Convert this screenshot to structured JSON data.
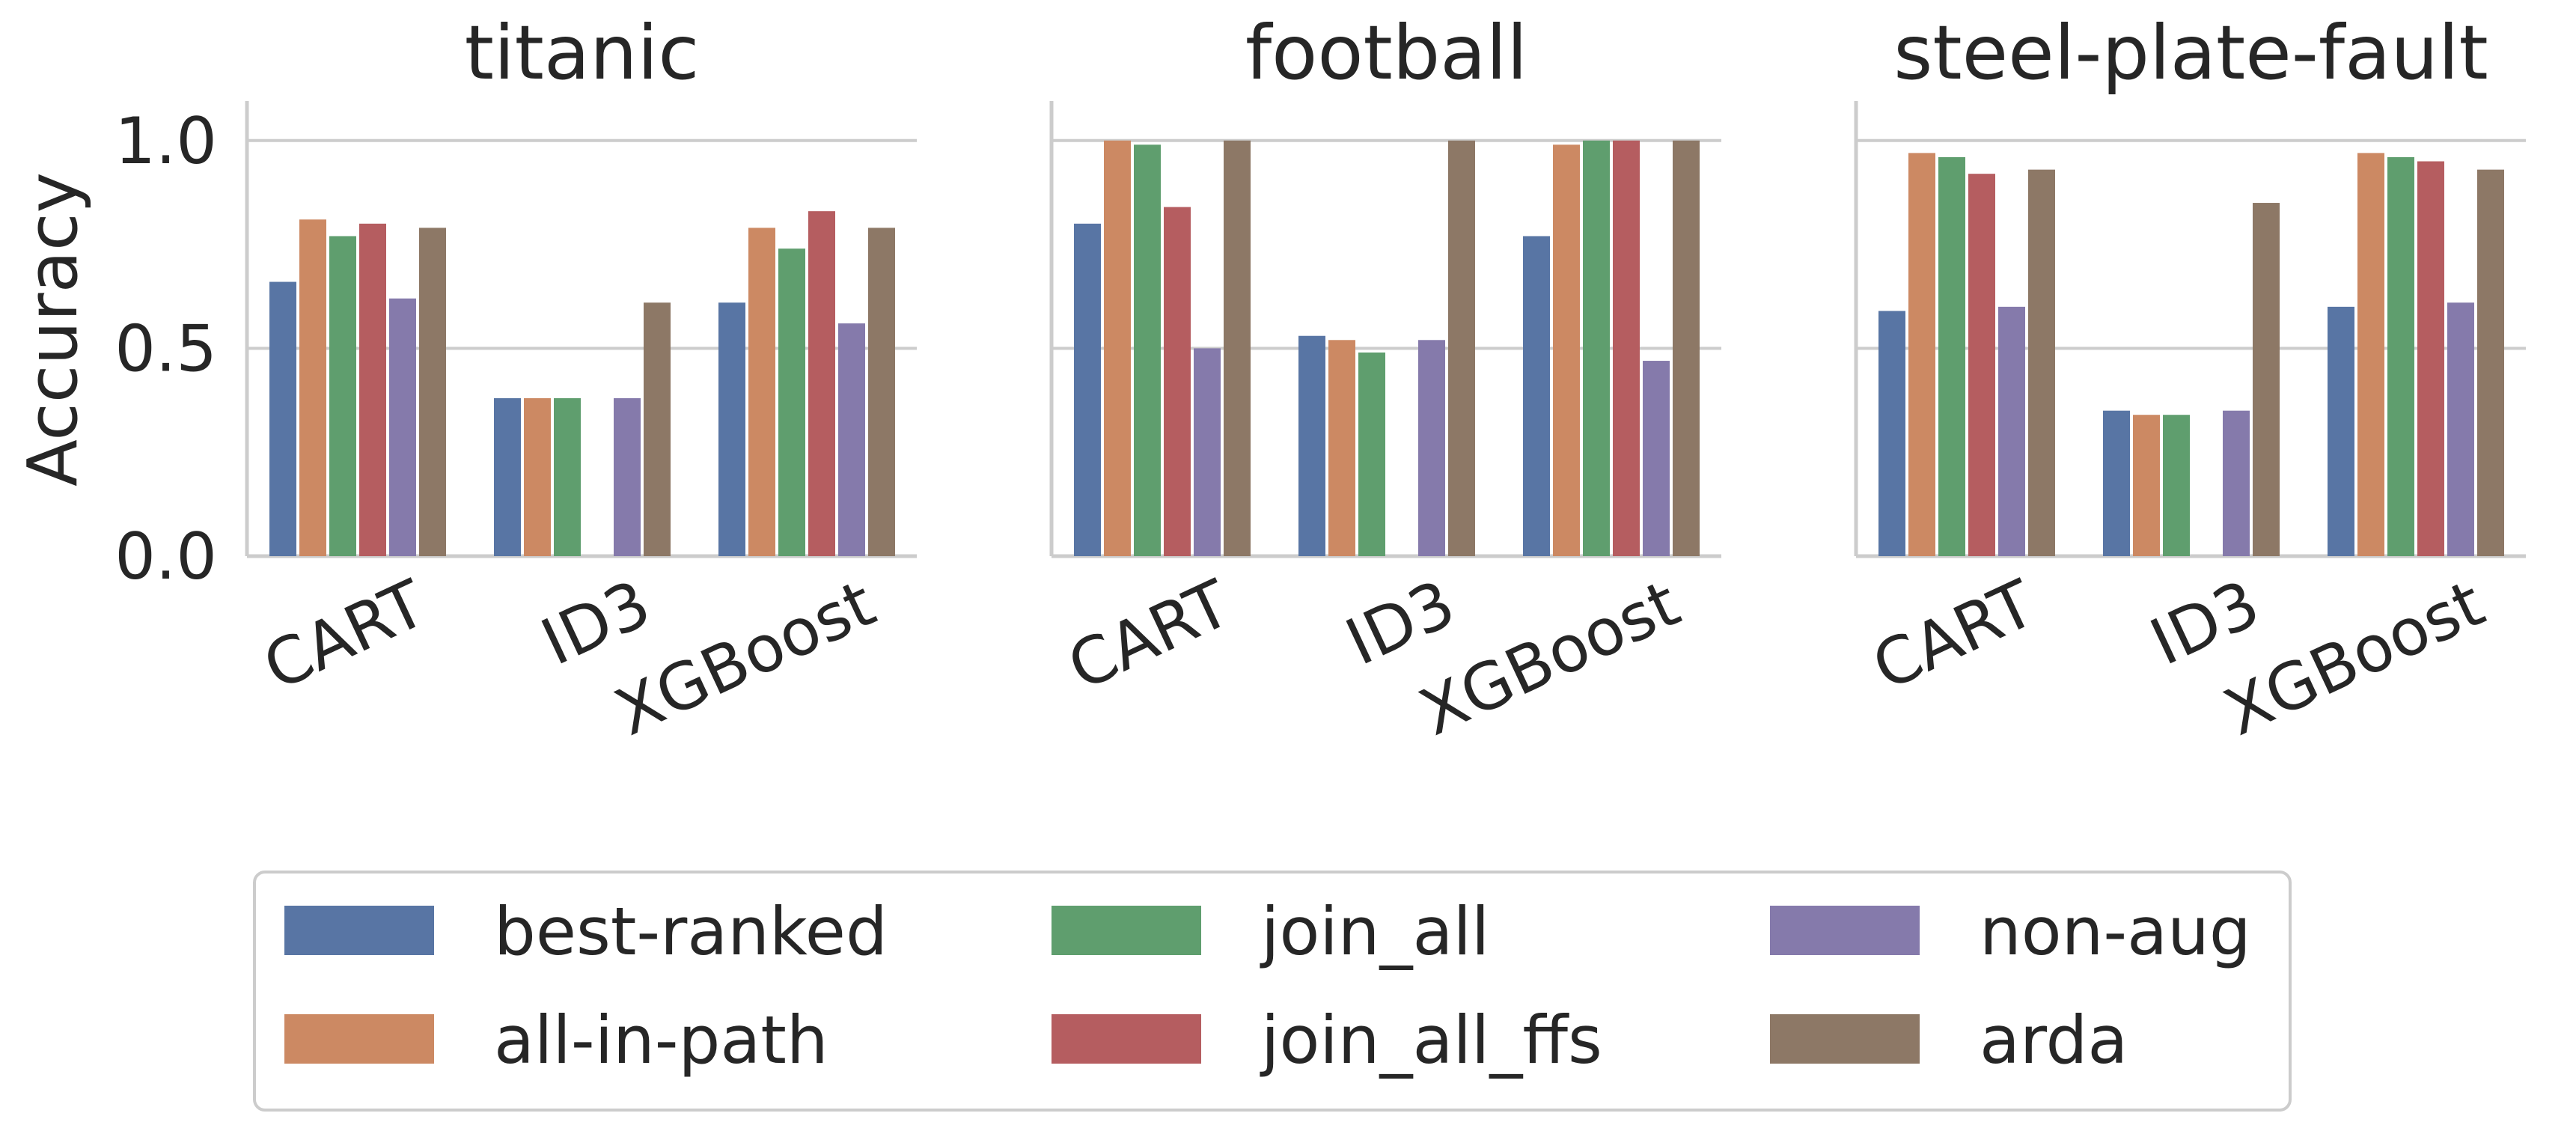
{
  "chart_data": {
    "type": "bar",
    "ylabel": "Accuracy",
    "ylim": [
      0,
      1.05
    ],
    "yticks": [
      "0.0",
      "0.5",
      "1.0"
    ],
    "grid": "horizontal",
    "legend": {
      "placement": "bottom",
      "columns": 3,
      "entries": [
        {
          "label": "best-ranked",
          "color": "#5875a4"
        },
        {
          "label": "all-in-path",
          "color": "#cc8963"
        },
        {
          "label": "join_all",
          "color": "#5f9e6e"
        },
        {
          "label": "join_all_ffs",
          "color": "#b55d60"
        },
        {
          "label": "non-aug",
          "color": "#857aab"
        },
        {
          "label": "arda",
          "color": "#8d7866"
        }
      ]
    },
    "categories": [
      "CART",
      "ID3",
      "XGBoost"
    ],
    "panels": [
      {
        "title": "titanic",
        "series": [
          {
            "name": "best-ranked",
            "values": [
              0.66,
              0.38,
              0.61
            ]
          },
          {
            "name": "all-in-path",
            "values": [
              0.81,
              0.38,
              0.79
            ]
          },
          {
            "name": "join_all",
            "values": [
              0.77,
              0.38,
              0.74
            ]
          },
          {
            "name": "join_all_ffs",
            "values": [
              0.8,
              null,
              0.83
            ]
          },
          {
            "name": "non-aug",
            "values": [
              0.62,
              0.38,
              0.56
            ]
          },
          {
            "name": "arda",
            "values": [
              0.79,
              0.61,
              0.79
            ]
          }
        ]
      },
      {
        "title": "football",
        "series": [
          {
            "name": "best-ranked",
            "values": [
              0.8,
              0.53,
              0.77
            ]
          },
          {
            "name": "all-in-path",
            "values": [
              1.0,
              0.52,
              0.99
            ]
          },
          {
            "name": "join_all",
            "values": [
              0.99,
              0.49,
              1.0
            ]
          },
          {
            "name": "join_all_ffs",
            "values": [
              0.84,
              null,
              1.0
            ]
          },
          {
            "name": "non-aug",
            "values": [
              0.5,
              0.52,
              0.47
            ]
          },
          {
            "name": "arda",
            "values": [
              1.0,
              1.0,
              1.0
            ]
          }
        ]
      },
      {
        "title": "steel-plate-fault",
        "series": [
          {
            "name": "best-ranked",
            "values": [
              0.59,
              0.35,
              0.6
            ]
          },
          {
            "name": "all-in-path",
            "values": [
              0.97,
              0.34,
              0.97
            ]
          },
          {
            "name": "join_all",
            "values": [
              0.96,
              0.34,
              0.96
            ]
          },
          {
            "name": "join_all_ffs",
            "values": [
              0.92,
              null,
              0.95
            ]
          },
          {
            "name": "non-aug",
            "values": [
              0.6,
              0.35,
              0.61
            ]
          },
          {
            "name": "arda",
            "values": [
              0.93,
              0.85,
              0.93
            ]
          }
        ]
      }
    ]
  }
}
